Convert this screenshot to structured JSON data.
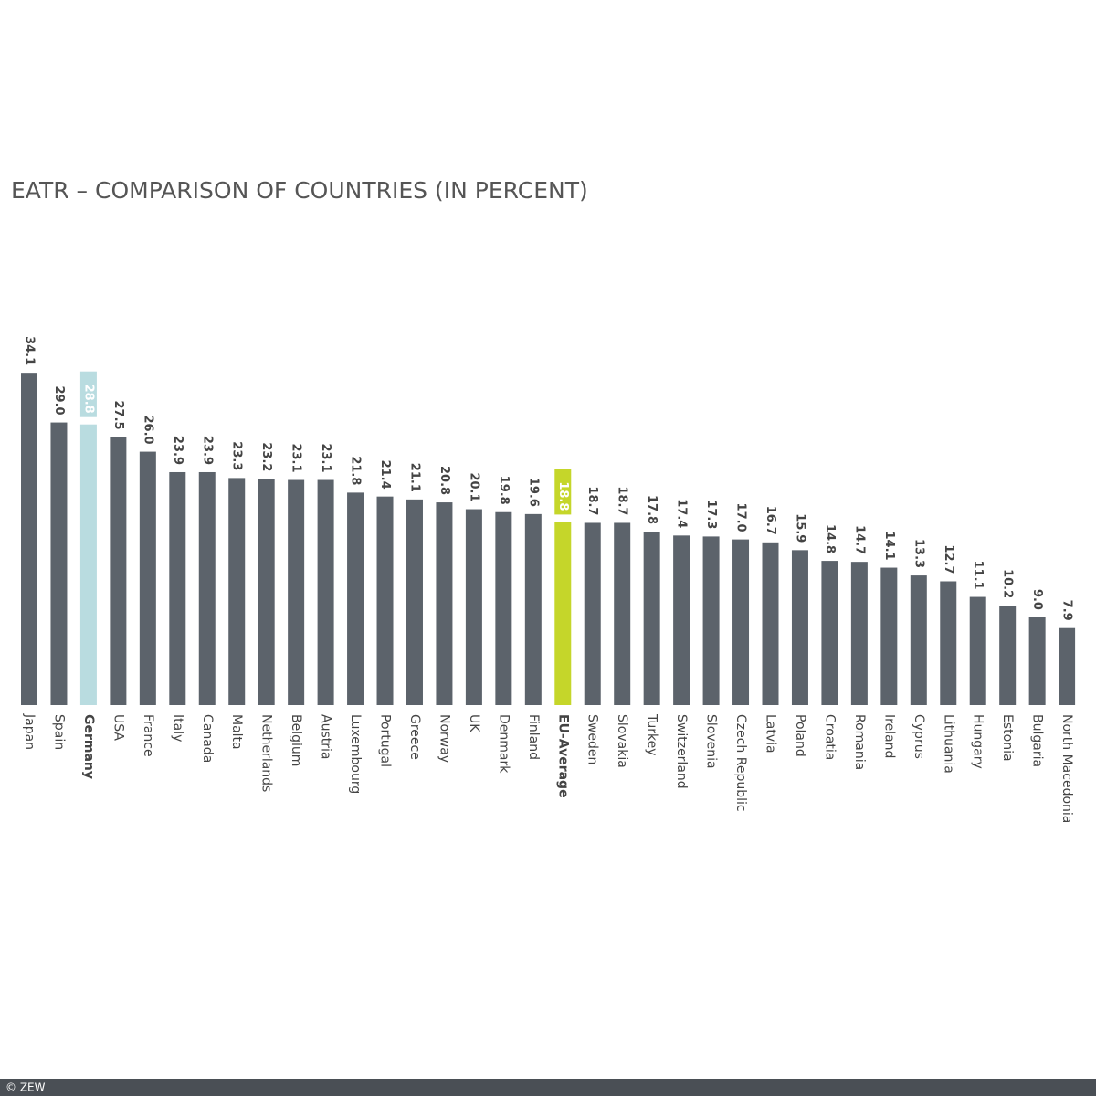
{
  "chart_data": {
    "type": "bar",
    "title": "EATR – COMPARISON OF COUNTRIES (IN PERCENT)",
    "categories": [
      "Japan",
      "Spain",
      "Germany",
      "USA",
      "France",
      "Italy",
      "Canada",
      "Malta",
      "Netherlands",
      "Belgium",
      "Austria",
      "Luxembourg",
      "Portugal",
      "Greece",
      "Norway",
      "UK",
      "Denmark",
      "Finland",
      "EU-Average",
      "Sweden",
      "Slovakia",
      "Turkey",
      "Switzerland",
      "Slovenia",
      "Czech Republic",
      "Latvia",
      "Poland",
      "Croatia",
      "Romania",
      "Ireland",
      "Cyprus",
      "Lithuania",
      "Hungary",
      "Estonia",
      "Bulgaria",
      "North Macedonia"
    ],
    "values": [
      34.1,
      29.0,
      28.8,
      27.5,
      26.0,
      23.9,
      23.9,
      23.3,
      23.2,
      23.1,
      23.1,
      21.8,
      21.4,
      21.1,
      20.8,
      20.1,
      19.8,
      19.6,
      18.8,
      18.7,
      18.7,
      17.8,
      17.4,
      17.3,
      17.0,
      16.7,
      15.9,
      14.8,
      14.7,
      14.1,
      13.3,
      12.7,
      11.1,
      10.2,
      9.0,
      7.9
    ],
    "value_labels": [
      "34.1",
      "29.0",
      "28.8",
      "27.5",
      "26.0",
      "23.9",
      "23.9",
      "23.3",
      "23.2",
      "23.1",
      "23.1",
      "21.8",
      "21.4",
      "21.1",
      "20.8",
      "20.1",
      "19.8",
      "19.6",
      "18.8",
      "18.7",
      "18.7",
      "17.8",
      "17.4",
      "17.3",
      "17.0",
      "16.7",
      "15.9",
      "14.8",
      "14.7",
      "14.1",
      "13.3",
      "12.7",
      "11.1",
      "10.2",
      "9.0",
      "7.9"
    ],
    "color": "#5c636b",
    "colors": [
      "#5c636b",
      "#5c636b",
      "#b9dce0",
      "#5c636b",
      "#5c636b",
      "#5c636b",
      "#5c636b",
      "#5c636b",
      "#5c636b",
      "#5c636b",
      "#5c636b",
      "#5c636b",
      "#5c636b",
      "#5c636b",
      "#5c636b",
      "#5c636b",
      "#5c636b",
      "#5c636b",
      "#c5d62a",
      "#5c636b",
      "#5c636b",
      "#5c636b",
      "#5c636b",
      "#5c636b",
      "#5c636b",
      "#5c636b",
      "#5c636b",
      "#5c636b",
      "#5c636b",
      "#5c636b",
      "#5c636b",
      "#5c636b",
      "#5c636b",
      "#5c636b",
      "#5c636b",
      "#5c636b"
    ]
  },
  "footer": "© ZEW"
}
